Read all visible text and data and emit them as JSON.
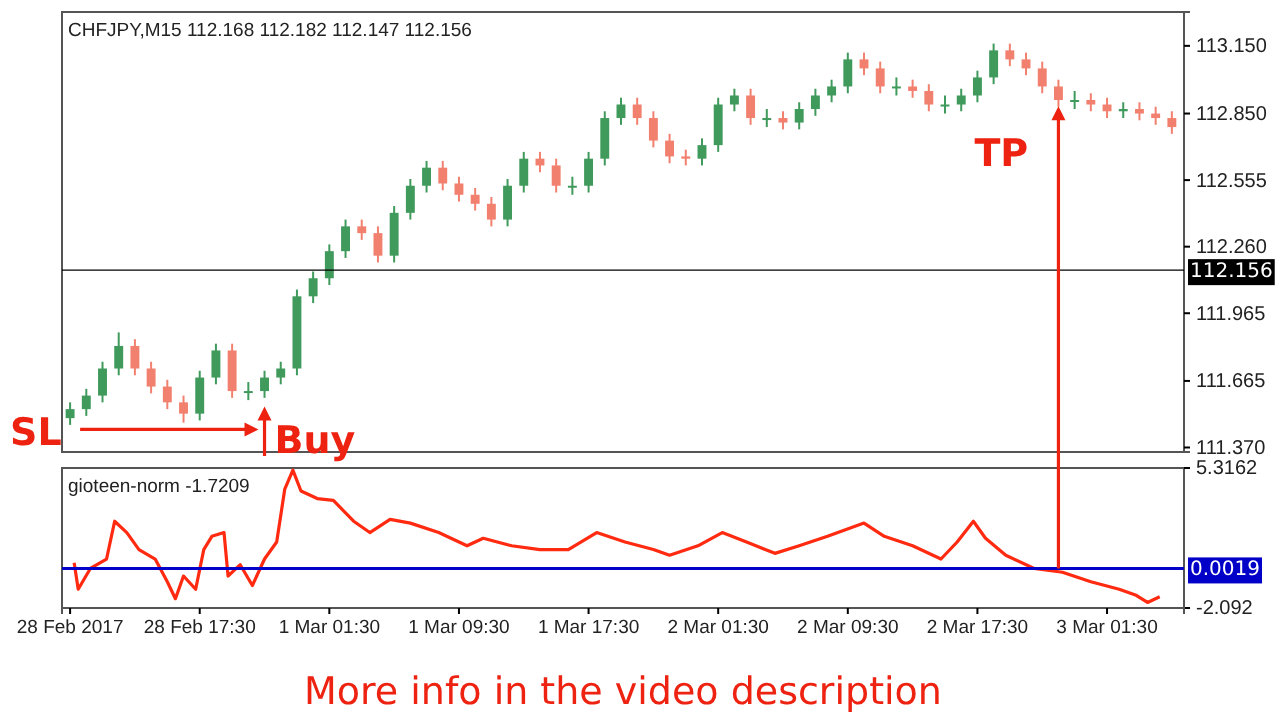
{
  "chart_data": [
    {
      "type": "candlestick",
      "title": "CHFJPY,M15  112.168 112.182 112.147 112.156",
      "tick_labels": "y",
      "x": [
        "2017-02-28T09:30",
        "2017-02-28T10:30",
        "2017-02-28T11:30",
        "2017-02-28T12:30",
        "2017-02-28T13:30",
        "2017-02-28T14:30",
        "2017-02-28T15:30",
        "2017-02-28T16:30",
        "2017-02-28T17:30",
        "2017-02-28T18:30",
        "2017-02-28T19:30",
        "2017-02-28T20:30",
        "2017-02-28T21:30",
        "2017-02-28T22:30",
        "2017-02-28T23:30",
        "2017-03-01T00:30",
        "2017-03-01T01:30",
        "2017-03-01T02:30",
        "2017-03-01T03:30",
        "2017-03-01T04:30",
        "2017-03-01T05:30",
        "2017-03-01T06:30",
        "2017-03-01T07:30",
        "2017-03-01T08:30",
        "2017-03-01T09:30",
        "2017-03-01T10:30",
        "2017-03-01T11:30",
        "2017-03-01T12:30",
        "2017-03-01T13:30",
        "2017-03-01T14:30",
        "2017-03-01T15:30",
        "2017-03-01T16:30",
        "2017-03-01T17:30",
        "2017-03-01T18:30",
        "2017-03-01T19:30",
        "2017-03-01T20:30",
        "2017-03-01T21:30",
        "2017-03-01T22:30",
        "2017-03-01T23:30",
        "2017-03-02T00:30",
        "2017-03-02T01:30",
        "2017-03-02T02:30",
        "2017-03-02T03:30",
        "2017-03-02T04:30",
        "2017-03-02T05:30",
        "2017-03-02T06:30",
        "2017-03-02T07:30",
        "2017-03-02T08:30",
        "2017-03-02T09:30",
        "2017-03-02T10:30",
        "2017-03-02T11:30",
        "2017-03-02T12:30",
        "2017-03-02T13:30",
        "2017-03-02T14:30",
        "2017-03-02T15:30",
        "2017-03-02T16:30",
        "2017-03-02T17:30",
        "2017-03-02T18:30",
        "2017-03-02T19:30",
        "2017-03-02T20:30",
        "2017-03-02T21:30",
        "2017-03-02T22:30",
        "2017-03-02T23:30",
        "2017-03-03T00:30",
        "2017-03-03T01:30",
        "2017-03-03T02:30",
        "2017-03-03T03:30",
        "2017-03-03T04:30",
        "2017-03-03T05:30"
      ],
      "ohlc": [
        [
          111.5,
          111.57,
          111.47,
          111.54
        ],
        [
          111.54,
          111.63,
          111.51,
          111.6
        ],
        [
          111.6,
          111.75,
          111.57,
          111.72
        ],
        [
          111.72,
          111.88,
          111.69,
          111.82
        ],
        [
          111.82,
          111.85,
          111.69,
          111.72
        ],
        [
          111.72,
          111.75,
          111.61,
          111.64
        ],
        [
          111.64,
          111.67,
          111.54,
          111.57
        ],
        [
          111.57,
          111.6,
          111.48,
          111.52
        ],
        [
          111.52,
          111.71,
          111.49,
          111.68
        ],
        [
          111.68,
          111.83,
          111.65,
          111.8
        ],
        [
          111.8,
          111.83,
          111.59,
          111.62
        ],
        [
          111.62,
          111.66,
          111.58,
          111.62
        ],
        [
          111.62,
          111.71,
          111.59,
          111.68
        ],
        [
          111.68,
          111.75,
          111.65,
          111.72
        ],
        [
          111.72,
          112.07,
          111.69,
          112.04
        ],
        [
          112.04,
          112.15,
          112.01,
          112.12
        ],
        [
          112.12,
          112.27,
          112.09,
          112.24
        ],
        [
          112.24,
          112.38,
          112.21,
          112.35
        ],
        [
          112.35,
          112.38,
          112.29,
          112.32
        ],
        [
          112.32,
          112.35,
          112.19,
          112.22
        ],
        [
          112.22,
          112.44,
          112.19,
          112.41
        ],
        [
          112.41,
          112.56,
          112.38,
          112.53
        ],
        [
          112.53,
          112.64,
          112.5,
          112.61
        ],
        [
          112.61,
          112.64,
          112.51,
          112.54
        ],
        [
          112.54,
          112.57,
          112.46,
          112.49
        ],
        [
          112.49,
          112.52,
          112.42,
          112.45
        ],
        [
          112.45,
          112.48,
          112.35,
          112.38
        ],
        [
          112.38,
          112.56,
          112.35,
          112.53
        ],
        [
          112.53,
          112.68,
          112.5,
          112.65
        ],
        [
          112.65,
          112.68,
          112.59,
          112.62
        ],
        [
          112.62,
          112.65,
          112.5,
          112.53
        ],
        [
          112.53,
          112.57,
          112.49,
          112.53
        ],
        [
          112.53,
          112.68,
          112.5,
          112.65
        ],
        [
          112.65,
          112.86,
          112.62,
          112.83
        ],
        [
          112.83,
          112.92,
          112.8,
          112.89
        ],
        [
          112.89,
          112.92,
          112.8,
          112.83
        ],
        [
          112.83,
          112.86,
          112.7,
          112.73
        ],
        [
          112.73,
          112.76,
          112.63,
          112.66
        ],
        [
          112.66,
          112.69,
          112.62,
          112.65
        ],
        [
          112.65,
          112.74,
          112.62,
          112.71
        ],
        [
          112.71,
          112.92,
          112.68,
          112.89
        ],
        [
          112.89,
          112.96,
          112.86,
          112.93
        ],
        [
          112.93,
          112.96,
          112.8,
          112.83
        ],
        [
          112.83,
          112.87,
          112.79,
          112.83
        ],
        [
          112.83,
          112.86,
          112.78,
          112.81
        ],
        [
          112.81,
          112.9,
          112.78,
          112.87
        ],
        [
          112.87,
          112.96,
          112.84,
          112.93
        ],
        [
          112.93,
          113.0,
          112.9,
          112.97
        ],
        [
          112.97,
          113.12,
          112.94,
          113.09
        ],
        [
          113.09,
          113.12,
          113.02,
          113.05
        ],
        [
          113.05,
          113.08,
          112.94,
          112.97
        ],
        [
          112.97,
          113.01,
          112.93,
          112.97
        ],
        [
          112.97,
          113.0,
          112.92,
          112.95
        ],
        [
          112.95,
          112.98,
          112.86,
          112.89
        ],
        [
          112.89,
          112.93,
          112.85,
          112.89
        ],
        [
          112.89,
          112.96,
          112.86,
          112.93
        ],
        [
          112.93,
          113.04,
          112.9,
          113.01
        ],
        [
          113.01,
          113.16,
          112.98,
          113.13
        ],
        [
          113.13,
          113.16,
          113.06,
          113.09
        ],
        [
          113.09,
          113.12,
          113.02,
          113.05
        ],
        [
          113.05,
          113.08,
          112.94,
          112.97
        ],
        [
          112.97,
          113.0,
          112.88,
          112.91
        ],
        [
          112.91,
          112.95,
          112.87,
          112.91
        ],
        [
          112.91,
          112.94,
          112.86,
          112.89
        ],
        [
          112.89,
          112.92,
          112.83,
          112.86
        ],
        [
          112.86,
          112.9,
          112.83,
          112.87
        ],
        [
          112.87,
          112.9,
          112.82,
          112.85
        ],
        [
          112.85,
          112.88,
          112.8,
          112.83
        ],
        [
          112.83,
          112.86,
          112.76,
          112.79
        ]
      ],
      "xlim": [
        "2017-02-28T09:00",
        "2017-03-03T06:15"
      ],
      "ylim": [
        111.35,
        113.3
      ],
      "yticks": [
        {
          "value": 113.15,
          "label": "113.150"
        },
        {
          "value": 112.85,
          "label": "112.850"
        },
        {
          "value": 112.555,
          "label": "112.555"
        },
        {
          "value": 112.26,
          "label": "112.260"
        },
        {
          "value": 111.965,
          "label": "111.965"
        },
        {
          "value": 111.665,
          "label": "111.665"
        },
        {
          "value": 111.37,
          "label": "111.370"
        }
      ],
      "ref_lines": [
        {
          "axis": "y",
          "value": 112.156,
          "label": "112.156",
          "color": "#000000"
        }
      ],
      "annotations": [
        {
          "text": "SL",
          "x": "2017-02-28T09:30",
          "y": 111.45
        },
        {
          "text": "Buy",
          "x": "2017-02-28T21:30",
          "y": 111.56
        },
        {
          "text": "TP",
          "x": "2017-03-02T22:30",
          "y": 112.9
        }
      ]
    },
    {
      "type": "line",
      "title": "gioteen-norm -1.7209",
      "series": [
        {
          "color": "#ff2a10",
          "x": [
            "2017-02-28T09:45",
            "2017-02-28T10:00",
            "2017-02-28T10:45",
            "2017-02-28T11:45",
            "2017-02-28T12:15",
            "2017-02-28T13:00",
            "2017-02-28T13:45",
            "2017-02-28T14:45",
            "2017-02-28T15:30",
            "2017-02-28T16:00",
            "2017-02-28T16:30",
            "2017-02-28T17:15",
            "2017-02-28T17:45",
            "2017-02-28T18:15",
            "2017-02-28T19:00",
            "2017-02-28T19:15",
            "2017-02-28T20:00",
            "2017-02-28T20:45",
            "2017-02-28T21:30",
            "2017-02-28T22:15",
            "2017-02-28T22:45",
            "2017-02-28T23:15",
            "2017-02-28T23:45",
            "2017-03-01T00:45",
            "2017-03-01T01:45",
            "2017-03-01T03:00",
            "2017-03-01T04:00",
            "2017-03-01T05:15",
            "2017-03-01T06:30",
            "2017-03-01T08:15",
            "2017-03-01T10:00",
            "2017-03-01T11:00",
            "2017-03-01T12:45",
            "2017-03-01T14:30",
            "2017-03-01T16:15",
            "2017-03-01T18:00",
            "2017-03-01T19:45",
            "2017-03-01T21:30",
            "2017-03-01T22:30",
            "2017-03-02T00:15",
            "2017-03-02T01:45",
            "2017-03-02T03:15",
            "2017-03-02T05:00",
            "2017-03-02T06:30",
            "2017-03-02T08:15",
            "2017-03-02T10:30",
            "2017-03-02T11:45",
            "2017-03-02T13:30",
            "2017-03-02T15:15",
            "2017-03-02T16:15",
            "2017-03-02T17:15",
            "2017-03-02T18:00",
            "2017-03-02T19:15",
            "2017-03-02T21:00",
            "2017-03-02T22:45",
            "2017-03-03T00:30",
            "2017-03-03T02:15",
            "2017-03-03T03:15",
            "2017-03-03T04:00",
            "2017-03-03T04:45"
          ],
          "values": [
            0.3,
            -1.1,
            0,
            0.5,
            2.5,
            1.9,
            1,
            0.5,
            -0.7,
            -1.6,
            -0.4,
            -1.1,
            1,
            1.7,
            1.9,
            -0.4,
            0.2,
            -0.9,
            0.5,
            1.4,
            4.2,
            5.2,
            4.1,
            3.7,
            3.6,
            2.5,
            1.9,
            2.6,
            2.4,
            1.9,
            1.2,
            1.6,
            1.2,
            1,
            1,
            1.9,
            1.4,
            1,
            0.7,
            1.2,
            1.9,
            1.4,
            0.8,
            1.2,
            1.7,
            2.4,
            1.7,
            1.2,
            0.5,
            1.4,
            2.5,
            1.6,
            0.7,
            0,
            -0.2,
            -0.7,
            -1.1,
            -1.4,
            -1.8,
            -1.5
          ]
        }
      ],
      "xlim": [
        "2017-02-28T09:00",
        "2017-03-03T06:15"
      ],
      "ylim": [
        -2.092,
        5.3162
      ],
      "yticks": [
        5.3162,
        -2.092
      ],
      "xticks": [
        {
          "value": "2017-02-28T09:30",
          "label": "28 Feb 2017"
        },
        {
          "value": "2017-02-28T17:30",
          "label": "28 Feb 17:30"
        },
        {
          "value": "2017-03-01T01:30",
          "label": "1 Mar 01:30"
        },
        {
          "value": "2017-03-01T09:30",
          "label": "1 Mar 09:30"
        },
        {
          "value": "2017-03-01T17:30",
          "label": "1 Mar 17:30"
        },
        {
          "value": "2017-03-02T01:30",
          "label": "2 Mar 01:30"
        },
        {
          "value": "2017-03-02T09:30",
          "label": "2 Mar 09:30"
        },
        {
          "value": "2017-03-02T17:30",
          "label": "2 Mar 17:30"
        },
        {
          "value": "2017-03-03T01:30",
          "label": "3 Mar 01:30"
        }
      ],
      "ref_lines": [
        {
          "axis": "y",
          "value": 0.0019,
          "label": "0.0019",
          "color": "#0000c8"
        }
      ],
      "annotations": [
        "More info in the video description"
      ]
    }
  ]
}
